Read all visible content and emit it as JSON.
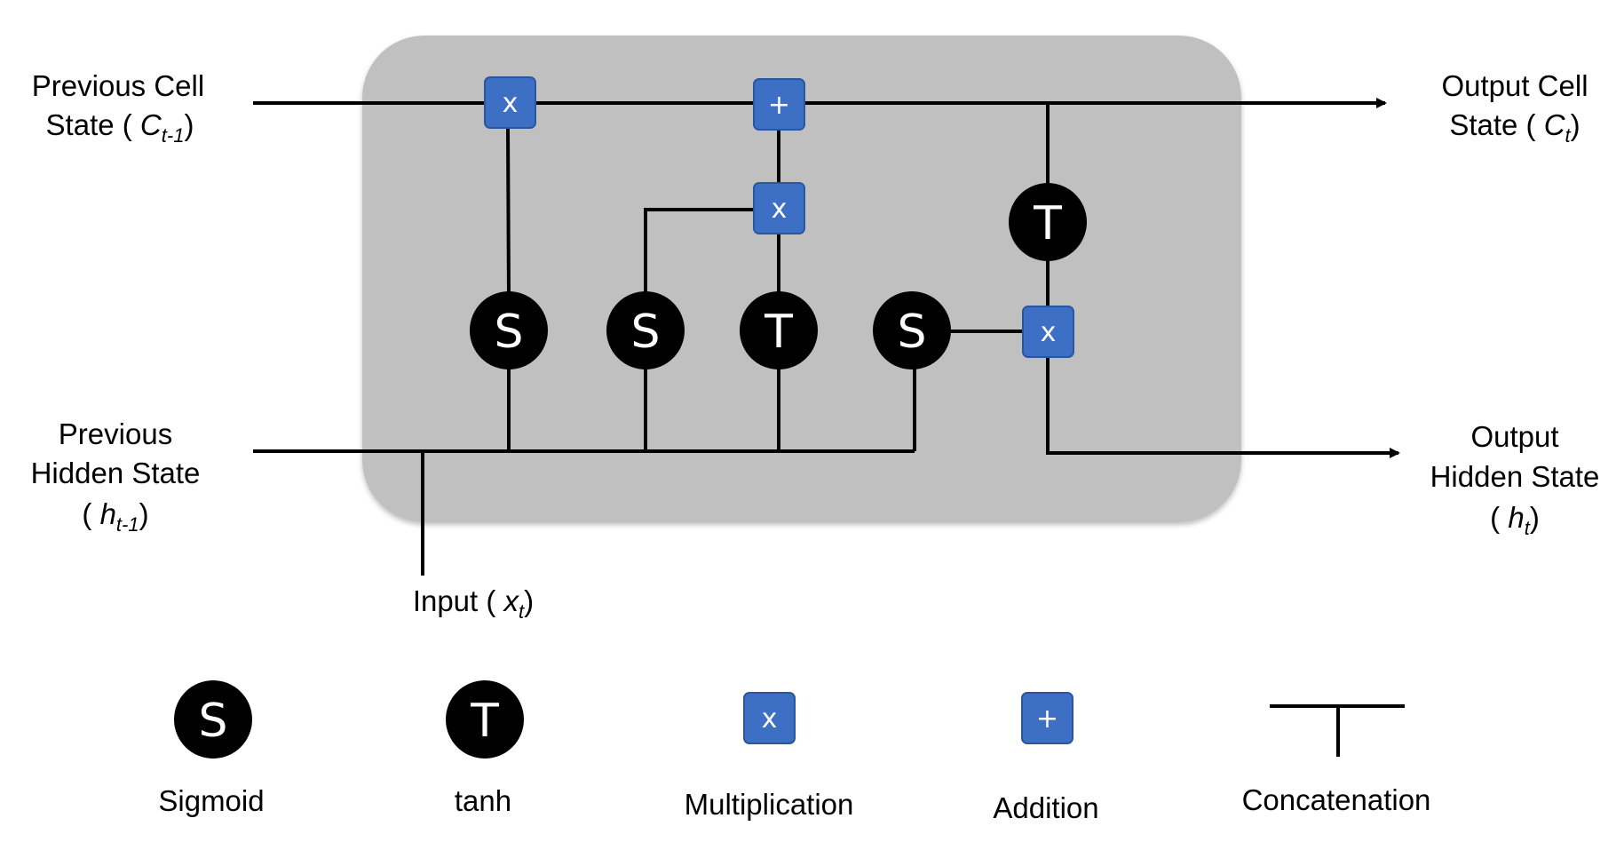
{
  "nodes": {
    "sigmoid_glyph": "S",
    "tanh_glyph": "T",
    "mult_glyph": "x",
    "add_glyph": "+"
  },
  "labels": {
    "prev_cell_line1": "Previous Cell",
    "prev_cell_line2": "State (",
    "prev_cell_var": "C",
    "prev_cell_sub": "t-1",
    "prev_cell_close": ")",
    "out_cell_line1": "Output Cell",
    "out_cell_line2": "State (",
    "out_cell_var": "C",
    "out_cell_sub": "t",
    "out_cell_close": ")",
    "prev_hidden_line1": "Previous",
    "prev_hidden_line2": "Hidden State",
    "prev_hidden_open": "(",
    "prev_hidden_var": "h",
    "prev_hidden_sub": "t-1",
    "prev_hidden_close": ")",
    "out_hidden_line1": "Output",
    "out_hidden_line2": "Hidden State",
    "out_hidden_open": "(",
    "out_hidden_var": "h",
    "out_hidden_sub": "t",
    "out_hidden_close": ")",
    "input_text": "Input (",
    "input_var": "x",
    "input_sub": "t",
    "input_close": ")"
  },
  "legend": {
    "sigmoid": "Sigmoid",
    "tanh": "tanh",
    "multiplication": "Multiplication",
    "addition": "Addition",
    "concatenation": "Concatenation"
  },
  "colors": {
    "cell_background": "#c0c0c0",
    "operator_fill": "#3d6fc4",
    "operator_stroke": "#2a56a0",
    "activation_fill": "#000000"
  }
}
